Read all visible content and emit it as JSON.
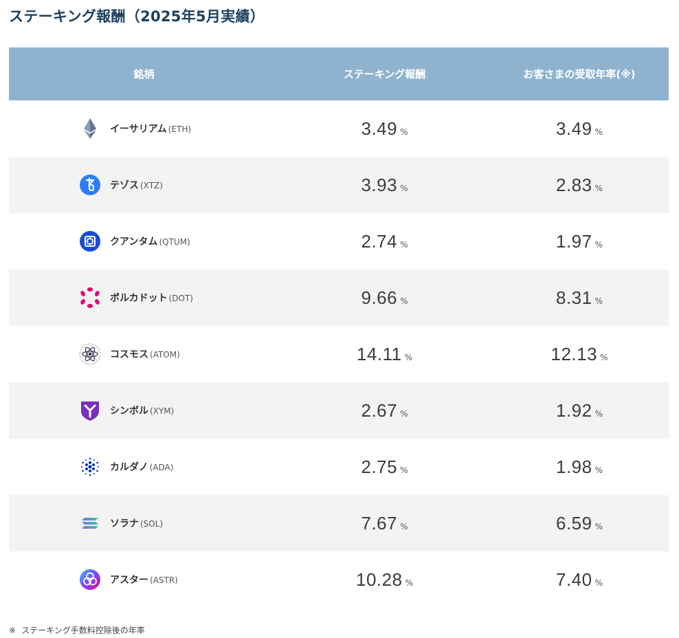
{
  "title": "ステーキング報酬（2025年5月実績）",
  "table": {
    "headers": [
      "銘柄",
      "ステーキング報酬",
      "お客さまの受取年率(※)"
    ],
    "percent_symbol": "%",
    "rows": [
      {
        "name": "イーサリアム",
        "ticker": "(ETH)",
        "icon": "ethereum-icon",
        "reward": "3.49",
        "customer_rate": "3.49"
      },
      {
        "name": "テゾス",
        "ticker": "(XTZ)",
        "icon": "tezos-icon",
        "reward": "3.93",
        "customer_rate": "2.83"
      },
      {
        "name": "クアンタム",
        "ticker": "(QTUM)",
        "icon": "qtum-icon",
        "reward": "2.74",
        "customer_rate": "1.97"
      },
      {
        "name": "ポルカドット",
        "ticker": "(DOT)",
        "icon": "polkadot-icon",
        "reward": "9.66",
        "customer_rate": "8.31"
      },
      {
        "name": "コスモス",
        "ticker": "(ATOM)",
        "icon": "cosmos-icon",
        "reward": "14.11",
        "customer_rate": "12.13"
      },
      {
        "name": "シンボル",
        "ticker": "(XYM)",
        "icon": "symbol-icon",
        "reward": "2.67",
        "customer_rate": "1.92"
      },
      {
        "name": "カルダノ",
        "ticker": "(ADA)",
        "icon": "cardano-icon",
        "reward": "2.75",
        "customer_rate": "1.98"
      },
      {
        "name": "ソラナ",
        "ticker": "(SOL)",
        "icon": "solana-icon",
        "reward": "7.67",
        "customer_rate": "6.59"
      },
      {
        "name": "アスター",
        "ticker": "(ASTR)",
        "icon": "astar-icon",
        "reward": "10.28",
        "customer_rate": "7.40"
      }
    ]
  },
  "footnote": {
    "mark": "※",
    "text": "ステーキング手数料控除後の年率"
  },
  "colors": {
    "title": "#1d4060",
    "header_bg": "#8fb3ce",
    "row_alt_bg": "#f3f3f3"
  }
}
